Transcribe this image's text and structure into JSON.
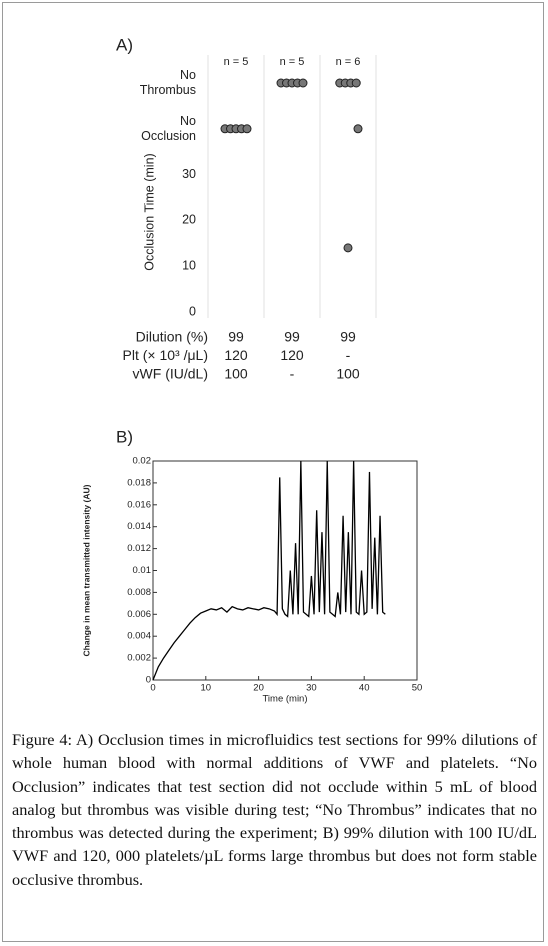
{
  "chart_data": [
    {
      "type": "scatter",
      "panel_label": "A)",
      "ylabel": "Occlusion Time (min)",
      "categories": [
        "n = 5",
        "n = 5",
        "n = 6"
      ],
      "values": [
        [
          40,
          40,
          40,
          40,
          40
        ],
        [
          50,
          50,
          50,
          50,
          50
        ],
        [
          50,
          50,
          50,
          50,
          40,
          14
        ]
      ],
      "color": "#777777",
      "ylim": [
        0,
        50
      ],
      "yticks": [
        0,
        10,
        20,
        30,
        {
          "value": 40,
          "label": "No Occlusion"
        },
        {
          "value": 50,
          "label": "No Thrombus"
        }
      ],
      "rows": [
        {
          "label": "Dilution (%)",
          "values": [
            99,
            99,
            99
          ]
        },
        {
          "label": "Plt (× 10³ /μL)",
          "values": [
            120,
            120,
            "-"
          ]
        },
        {
          "label": "vWF (IU/dL)",
          "values": [
            100,
            "-",
            100
          ]
        }
      ]
    },
    {
      "type": "line",
      "panel_label": "B)",
      "xlabel": "Time (min)",
      "ylabel": "Change in mean transmitted intensity (AU)",
      "color": "#000000",
      "x": [
        0,
        1,
        2,
        3,
        4,
        5,
        6,
        7,
        8,
        9,
        10,
        11,
        12,
        13,
        14,
        15,
        16,
        17,
        18,
        19,
        20,
        21,
        22,
        23,
        23.5,
        24,
        24.5,
        25,
        25.5,
        26,
        26.5,
        27,
        27.5,
        28,
        28.5,
        29,
        29.5,
        30,
        30.5,
        31,
        31.5,
        32,
        32.5,
        33,
        33.5,
        34,
        34.5,
        35,
        35.5,
        36,
        36.5,
        37,
        37.5,
        38,
        38.5,
        39,
        39.5,
        40,
        40.5,
        41,
        41.5,
        42,
        42.5,
        43,
        43.5,
        44
      ],
      "values": [
        0,
        0.0012,
        0.002,
        0.0027,
        0.0034,
        0.004,
        0.0046,
        0.0052,
        0.0057,
        0.0061,
        0.0063,
        0.0065,
        0.0064,
        0.0066,
        0.0062,
        0.0067,
        0.0065,
        0.0064,
        0.0066,
        0.0065,
        0.0064,
        0.0066,
        0.0065,
        0.0063,
        0.006,
        0.0185,
        0.0065,
        0.006,
        0.0058,
        0.01,
        0.006,
        0.0125,
        0.006,
        0.02,
        0.0062,
        0.006,
        0.0058,
        0.0095,
        0.006,
        0.0155,
        0.0062,
        0.0135,
        0.006,
        0.02,
        0.0062,
        0.006,
        0.0058,
        0.008,
        0.006,
        0.015,
        0.0062,
        0.0135,
        0.006,
        0.02,
        0.0062,
        0.006,
        0.01,
        0.006,
        0.0062,
        0.019,
        0.0065,
        0.013,
        0.006,
        0.015,
        0.0062,
        0.006
      ],
      "xlim": [
        0,
        50
      ],
      "xticks": [
        0,
        10,
        20,
        30,
        40,
        50
      ],
      "ylim": [
        0,
        0.02
      ],
      "yticks": [
        0,
        0.002,
        0.004,
        0.006,
        0.008,
        0.01,
        0.012,
        0.014,
        0.016,
        0.018,
        0.02
      ]
    }
  ],
  "caption": "Figure 4: A) Occlusion times in microfluidics test sections for 99% dilutions of whole human blood with normal additions of VWF and platelets. “No Occlusion” indicates that test section did not occlude within 5 mL of blood analog but thrombus was visible during test; “No Thrombus” indicates that no thrombus was detected during the experiment; B) 99% dilution with 100 IU/dL VWF and 120, 000 platelets/µL forms large thrombus but does not form stable occlusive thrombus."
}
